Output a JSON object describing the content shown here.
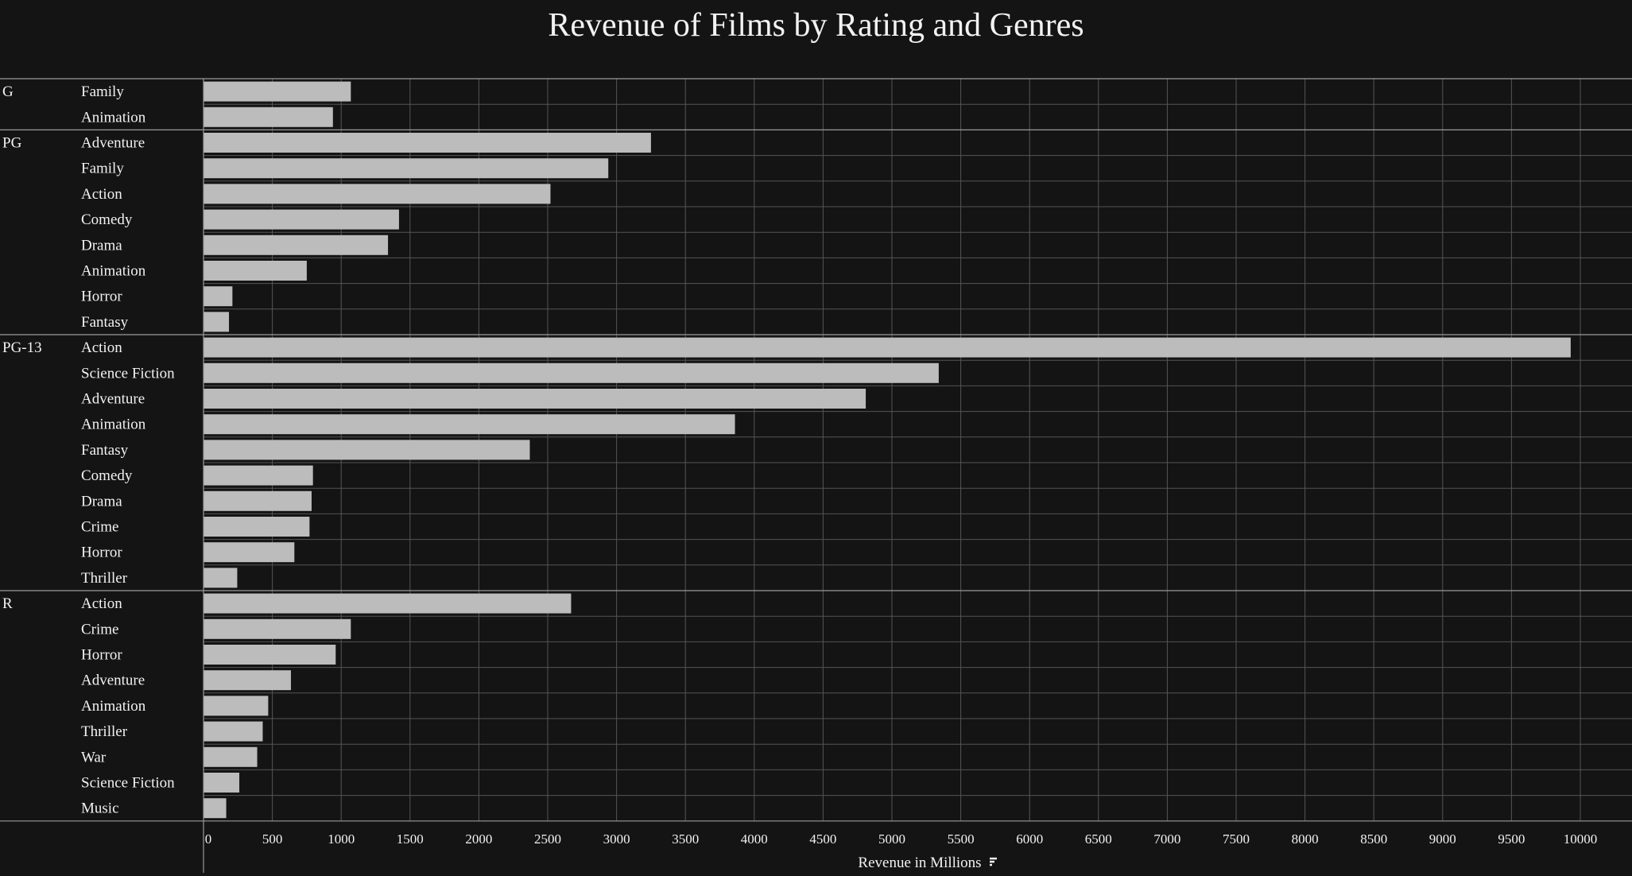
{
  "colors": {
    "background": "#141414",
    "bar": "#bcbcbc",
    "text": "#f2f2f2",
    "grid": "#555555",
    "separator": "#9a9a9a"
  },
  "chart_data": {
    "type": "bar",
    "orientation": "horizontal",
    "title": "Revenue of Films by Rating and Genres",
    "xlabel": "Revenue in Millions",
    "ylabel": "",
    "xlim": [
      0,
      10000
    ],
    "xticks": [
      "0",
      "500",
      "1000",
      "1500",
      "2000",
      "2500",
      "3000",
      "3500",
      "4000",
      "4500",
      "5000",
      "5500",
      "6000",
      "6500",
      "7000",
      "7500",
      "8000",
      "8500",
      "9000",
      "9500",
      "10000"
    ],
    "grid": true,
    "groups": [
      {
        "rating": "G",
        "genres": [
          "Family",
          "Animation"
        ],
        "values": [
          1070,
          940
        ]
      },
      {
        "rating": "PG",
        "genres": [
          "Adventure",
          "Family",
          "Action",
          "Comedy",
          "Drama",
          "Animation",
          "Horror",
          "Fantasy"
        ],
        "values": [
          3250,
          2940,
          2520,
          1420,
          1340,
          750,
          210,
          185
        ]
      },
      {
        "rating": "PG-13",
        "genres": [
          "Action",
          "Science Fiction",
          "Adventure",
          "Animation",
          "Fantasy",
          "Comedy",
          "Drama",
          "Crime",
          "Horror",
          "Thriller"
        ],
        "values": [
          9930,
          5340,
          4810,
          3860,
          2370,
          795,
          785,
          770,
          660,
          245
        ]
      },
      {
        "rating": "R",
        "genres": [
          "Action",
          "Crime",
          "Horror",
          "Adventure",
          "Animation",
          "Thriller",
          "War",
          "Science Fiction",
          "Music"
        ],
        "values": [
          2670,
          1070,
          960,
          635,
          470,
          430,
          390,
          260,
          165
        ]
      }
    ]
  }
}
